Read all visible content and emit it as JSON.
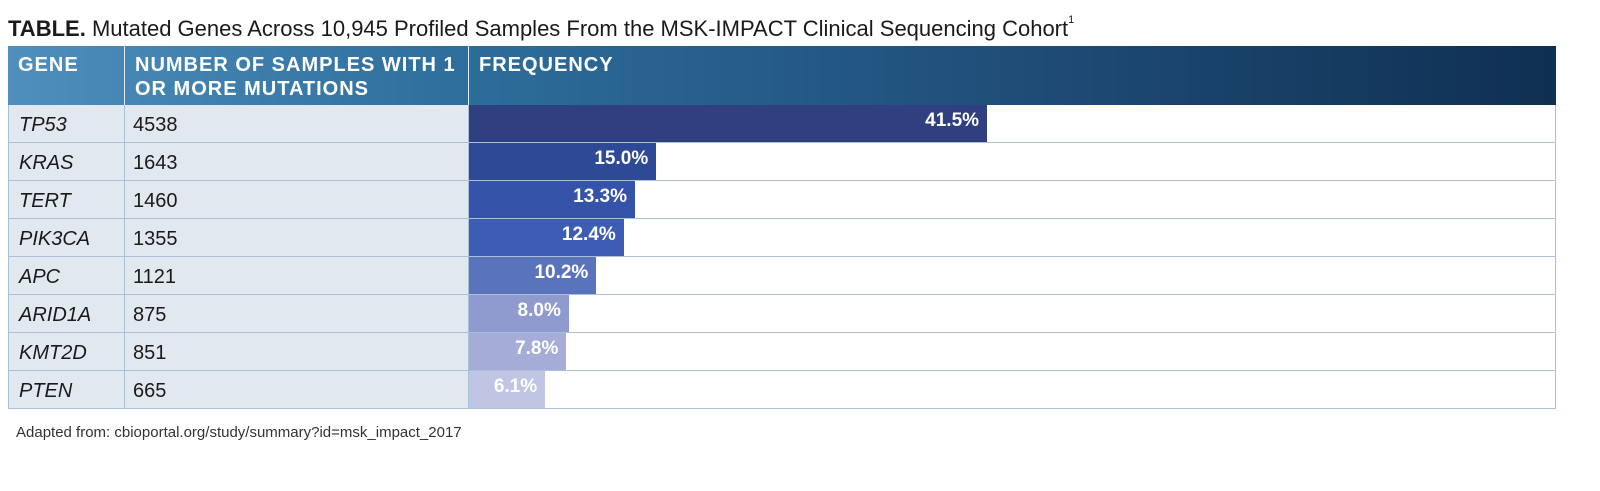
{
  "title": {
    "lead": "TABLE.",
    "text": "Mutated Genes Across 10,945 Profiled Samples From the MSK-IMPACT Clinical Sequencing Cohort",
    "superscript": "1"
  },
  "table": {
    "headers": {
      "gene": "GENE",
      "count": "NUMBER OF SAMPLES WITH 1 OR MORE MUTATIONS",
      "frequency": "FREQUENCY"
    },
    "rows": [
      {
        "gene": "TP53",
        "count": "4538",
        "frequency": "41.5%",
        "value": 41.5,
        "color": "#2f3f80"
      },
      {
        "gene": "KRAS",
        "count": "1643",
        "frequency": "15.0%",
        "value": 15.0,
        "color": "#2e4a96"
      },
      {
        "gene": "TERT",
        "count": "1460",
        "frequency": "13.3%",
        "value": 13.3,
        "color": "#3553a8"
      },
      {
        "gene": "PIK3CA",
        "count": "1355",
        "frequency": "12.4%",
        "value": 12.4,
        "color": "#3d5db5"
      },
      {
        "gene": "APC",
        "count": "1121",
        "frequency": "10.2%",
        "value": 10.2,
        "color": "#5a73bd"
      },
      {
        "gene": "ARID1A",
        "count": "875",
        "frequency": "8.0%",
        "value": 8.0,
        "color": "#8f9bcf"
      },
      {
        "gene": "KMT2D",
        "count": "851",
        "frequency": "7.8%",
        "value": 7.8,
        "color": "#a4acd7"
      },
      {
        "gene": "PTEN",
        "count": "665",
        "frequency": "6.1%",
        "value": 6.1,
        "color": "#c0c5e4"
      }
    ]
  },
  "source": "Adapted from: cbioportal.org/study/summary?id=msk_impact_2017"
}
